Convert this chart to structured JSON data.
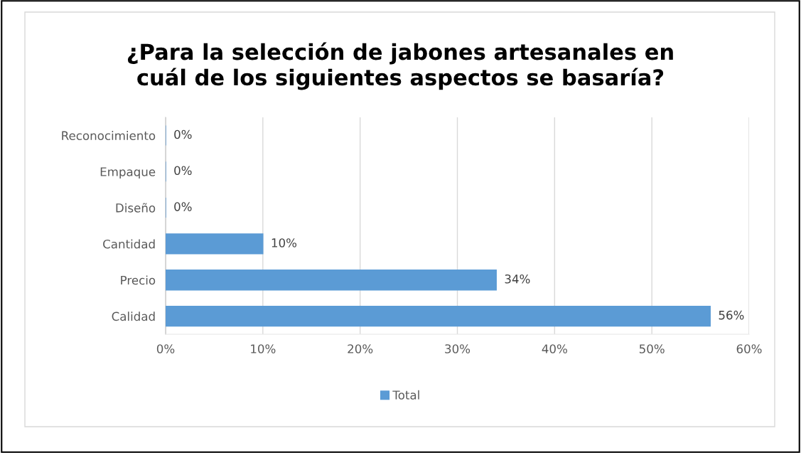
{
  "chart_data": {
    "type": "bar",
    "orientation": "horizontal",
    "title": "¿Para la selección de jabones artesanales en\ncuál de los siguientes aspectos se basaría?",
    "categories": [
      "Reconocimiento",
      "Empaque",
      "Diseño",
      "Cantidad",
      "Precio",
      "Calidad"
    ],
    "series": [
      {
        "name": "Total",
        "color": "#5b9bd5",
        "values": [
          0,
          0,
          0,
          10,
          34,
          56
        ],
        "value_labels": [
          "0%",
          "0%",
          "0%",
          "10%",
          "34%",
          "56%"
        ]
      }
    ],
    "xlim": [
      0,
      60
    ],
    "xticks": [
      {
        "value": 0,
        "label": "0%"
      },
      {
        "value": 10,
        "label": "10%"
      },
      {
        "value": 20,
        "label": "20%"
      },
      {
        "value": 30,
        "label": "30%"
      },
      {
        "value": 40,
        "label": "40%"
      },
      {
        "value": 50,
        "label": "50%"
      },
      {
        "value": 60,
        "label": "60%"
      }
    ],
    "grid": "x",
    "legend": "bottom"
  }
}
